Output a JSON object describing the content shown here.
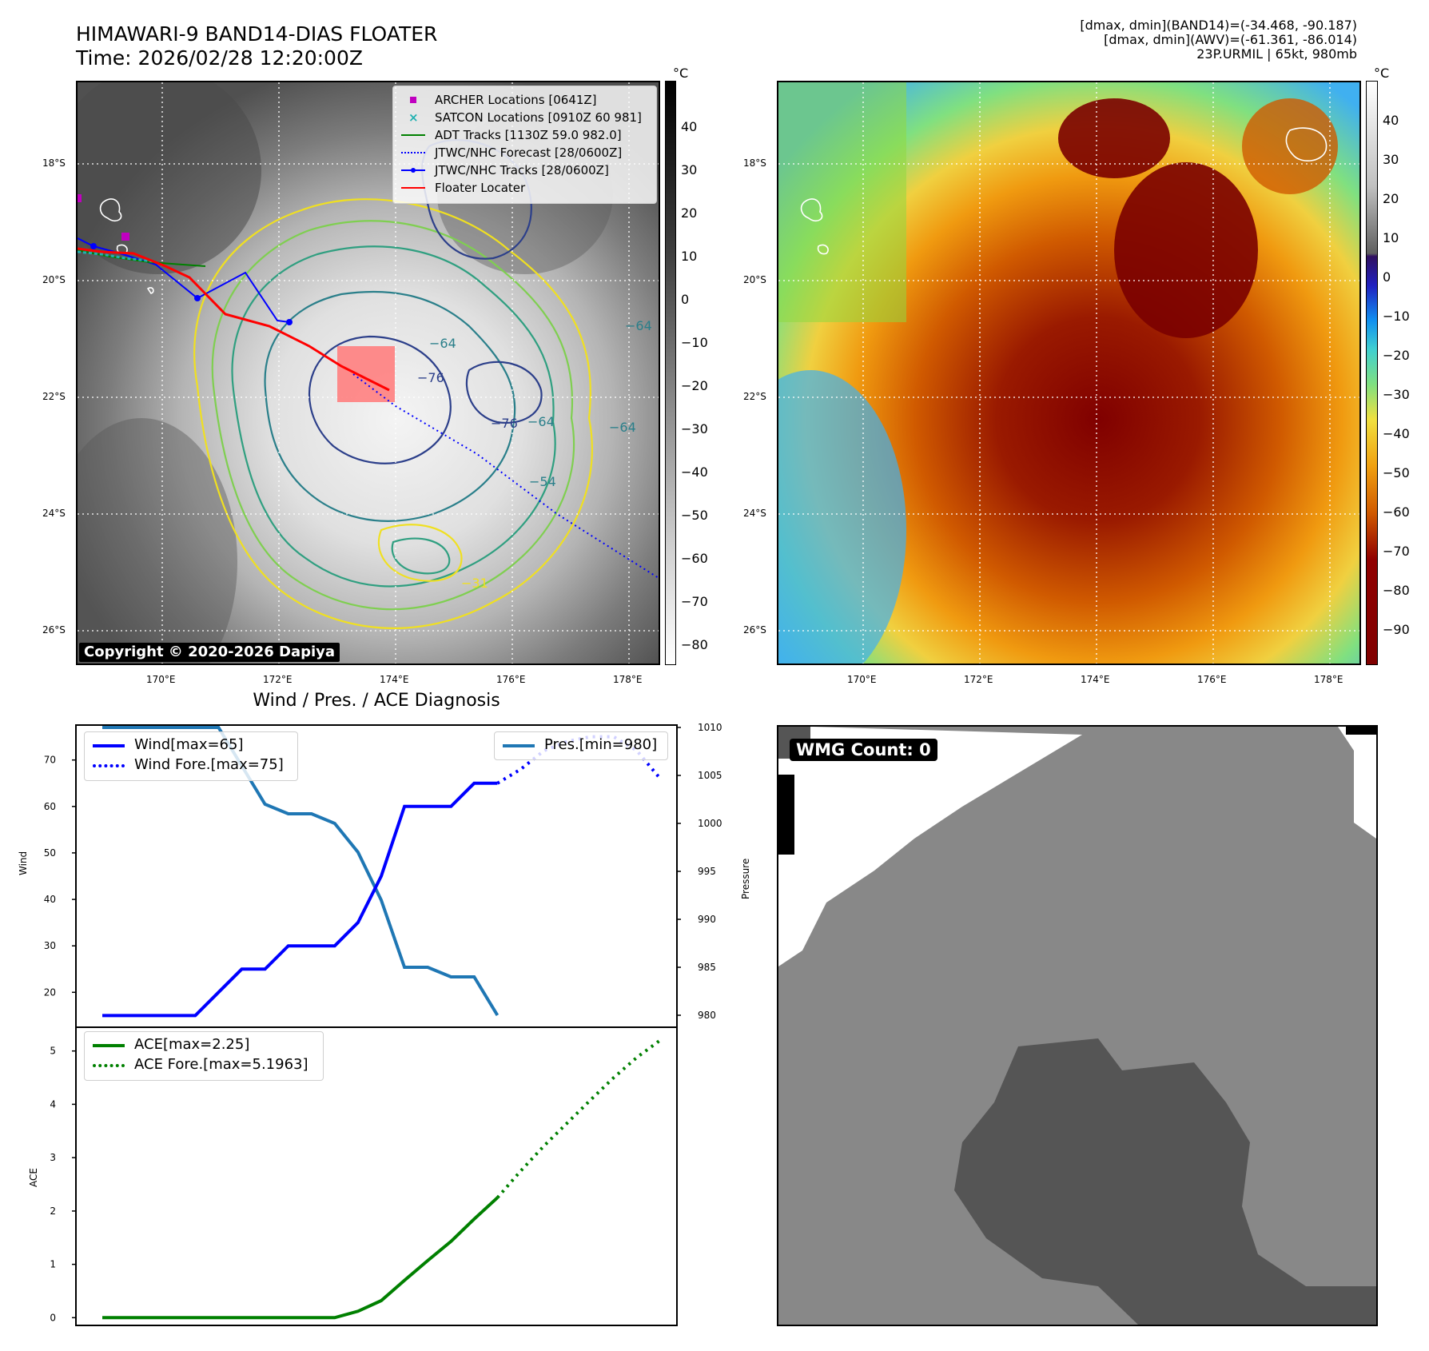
{
  "header": {
    "title_line1": "HIMAWARI-9 BAND14-DIAS FLOATER",
    "title_line2": "Time: 2026/02/28 12:20:00Z",
    "info_line1": "[dmax, dmin](BAND14)=(-34.468, -90.187)",
    "info_line2": "[dmax, dmin](AWV)=(-61.361, -86.014)",
    "info_line3": "23P.URMIL | 65kt, 980mb"
  },
  "map_axes": {
    "lat_labels": [
      "18°S",
      "20°S",
      "22°S",
      "24°S",
      "26°S"
    ],
    "lon_labels": [
      "170°E",
      "172°E",
      "174°E",
      "176°E",
      "178°E"
    ]
  },
  "ir_panel": {
    "copyright": "Copyright © 2020-2026 Dapiya",
    "colorbar_unit": "°C",
    "colorbar_ticks": [
      "40",
      "30",
      "20",
      "10",
      "0",
      "−10",
      "−20",
      "−30",
      "−40",
      "−50",
      "−60",
      "−70",
      "−80"
    ],
    "contour_labels": [
      "−76",
      "−76",
      "−64",
      "−64",
      "−64",
      "−64",
      "−54",
      "−31"
    ],
    "legend": [
      {
        "label": "ARCHER Locations [0641Z]",
        "color": "#c000c0",
        "marker": "square"
      },
      {
        "label": "SATCON Locations [0910Z 60 981]",
        "color": "#20b0b0",
        "marker": "x"
      },
      {
        "label": "ADT Tracks [1130Z 59.0 982.0]",
        "color": "#008000",
        "marker": "line"
      },
      {
        "label": "JTWC/NHC Forecast [28/0600Z]",
        "color": "#0000ff",
        "marker": "dotted"
      },
      {
        "label": "JTWC/NHC Tracks [28/0600Z]",
        "color": "#0000ff",
        "marker": "line-dot"
      },
      {
        "label": "Floater Locater",
        "color": "#ff0000",
        "marker": "line"
      }
    ]
  },
  "enh_panel": {
    "colorbar_unit": "°C",
    "colorbar_ticks": [
      "40",
      "30",
      "20",
      "10",
      "0",
      "−10",
      "−20",
      "−30",
      "−40",
      "−50",
      "−60",
      "−70",
      "−80",
      "−90"
    ]
  },
  "diag": {
    "title": "Wind / Pres. / ACE Diagnosis",
    "wind_axis_label": "Wind",
    "pres_axis_label": "Pressure",
    "ace_axis_label": "ACE",
    "wind_ticks": [
      "70",
      "60",
      "50",
      "40",
      "30",
      "20"
    ],
    "pres_ticks": [
      "1010",
      "1005",
      "1000",
      "995",
      "990",
      "985",
      "980"
    ],
    "ace_ticks": [
      "5",
      "4",
      "3",
      "2",
      "1",
      "0"
    ],
    "legend_wind": "Wind[max=65]",
    "legend_wind_fore": "Wind Fore.[max=75]",
    "legend_pres": "Pres.[min=980]",
    "legend_ace": "ACE[max=2.25]",
    "legend_ace_fore": "ACE Fore.[max=5.1963]"
  },
  "wmg_panel": {
    "badge": "WMG Count: 0"
  },
  "colors": {
    "wind": "#0000ff",
    "pressure": "#1f77b4",
    "ace": "#008000",
    "floater_box": "#ff8080"
  },
  "chart_data": [
    {
      "type": "line",
      "title": "Wind / Pres. / ACE Diagnosis",
      "ylabel": "Wind",
      "ylim": [
        13,
        77
      ],
      "series": [
        {
          "name": "Wind[max=65]",
          "x": [
            0,
            1,
            2,
            3,
            4,
            5,
            6,
            7,
            8,
            9,
            10,
            11,
            12,
            13,
            14,
            15,
            16,
            17
          ],
          "values": [
            15,
            15,
            15,
            15,
            15,
            20,
            25,
            25,
            30,
            30,
            30,
            35,
            45,
            60,
            60,
            60,
            65,
            65
          ]
        },
        {
          "name": "Wind Fore.[max=75]",
          "x": [
            17,
            18,
            19,
            20,
            21,
            22,
            23,
            24
          ],
          "values": [
            65,
            68,
            72,
            74,
            75,
            75,
            72,
            66
          ]
        }
      ]
    },
    {
      "type": "line",
      "ylabel": "Pressure",
      "ylim": [
        979,
        1010
      ],
      "series": [
        {
          "name": "Pres.[min=980]",
          "x": [
            0,
            1,
            2,
            3,
            4,
            5,
            6,
            7,
            8,
            9,
            10,
            11,
            12,
            13,
            14,
            15,
            16,
            17
          ],
          "values": [
            1010,
            1010,
            1010,
            1010,
            1010,
            1010,
            1006,
            1002,
            1001,
            1001,
            1000,
            997,
            992,
            985,
            985,
            984,
            984,
            980
          ]
        }
      ]
    },
    {
      "type": "line",
      "ylabel": "ACE",
      "ylim": [
        -0.1,
        5.4
      ],
      "series": [
        {
          "name": "ACE[max=2.25]",
          "x": [
            0,
            1,
            2,
            3,
            4,
            5,
            6,
            7,
            8,
            9,
            10,
            11,
            12,
            13,
            14,
            15,
            16,
            17
          ],
          "values": [
            0,
            0,
            0,
            0,
            0,
            0,
            0,
            0,
            0,
            0,
            0,
            0.12,
            0.32,
            0.7,
            1.07,
            1.43,
            1.85,
            2.25
          ]
        },
        {
          "name": "ACE Fore.[max=5.1963]",
          "x": [
            17,
            18,
            19,
            20,
            21,
            22,
            23,
            24
          ],
          "values": [
            2.25,
            2.75,
            3.22,
            3.65,
            4.08,
            4.5,
            4.88,
            5.2
          ]
        }
      ]
    }
  ]
}
